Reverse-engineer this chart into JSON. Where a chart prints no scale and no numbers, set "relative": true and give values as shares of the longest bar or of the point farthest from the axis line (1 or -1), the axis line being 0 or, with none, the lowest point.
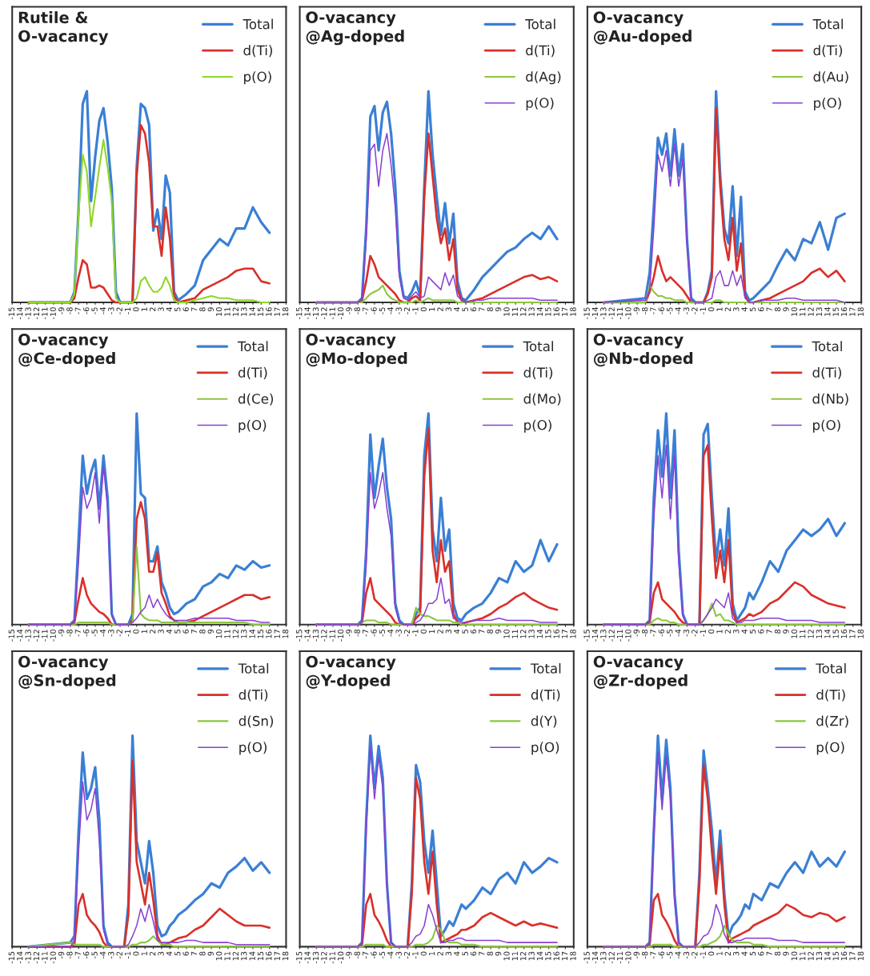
{
  "chart_data": [
    {
      "type": "line",
      "title": "Rutile &\nO-vacancy",
      "relative": true,
      "legend": "top right",
      "tick_labels": "x",
      "grid": false,
      "xlim": [
        -15,
        18
      ],
      "xticks": [
        -15,
        -14,
        -13,
        -12,
        -11,
        -10,
        -9,
        -8,
        -7,
        -6,
        -5,
        -4,
        -3,
        -2,
        -1,
        0,
        1,
        2,
        3,
        4,
        5,
        6,
        7,
        8,
        9,
        10,
        11,
        12,
        13,
        14,
        15,
        16,
        17,
        18
      ],
      "x": [
        -13,
        -8,
        -7.5,
        -7,
        -6.5,
        -6,
        -5.5,
        -5,
        -4.5,
        -4,
        -3.5,
        -3,
        -2.5,
        -2,
        -1.5,
        -1,
        -0.5,
        0,
        0.5,
        1,
        1.5,
        2,
        2.5,
        3,
        3.5,
        4,
        4.5,
        5,
        6,
        7,
        8,
        9,
        10,
        11,
        12,
        13,
        14,
        15,
        16
      ],
      "series": [
        {
          "name": "Total",
          "color": "#3a7fd5",
          "values": [
            0,
            0,
            0.05,
            0.44,
            0.94,
            1.0,
            0.48,
            0.69,
            0.86,
            0.92,
            0.76,
            0.54,
            0.05,
            0,
            0,
            0,
            0,
            0.64,
            0.94,
            0.92,
            0.84,
            0.34,
            0.44,
            0.3,
            0.6,
            0.52,
            0.05,
            0.01,
            0.04,
            0.08,
            0.2,
            0.25,
            0.3,
            0.27,
            0.35,
            0.35,
            0.45,
            0.38,
            0.33
          ]
        },
        {
          "name": "d(Ti)",
          "color": "#d9302a",
          "values": [
            0,
            0,
            0.02,
            0.12,
            0.2,
            0.18,
            0.07,
            0.07,
            0.08,
            0.07,
            0.04,
            0.01,
            0,
            0,
            0,
            0,
            0,
            0.6,
            0.84,
            0.8,
            0.66,
            0.36,
            0.36,
            0.22,
            0.45,
            0.3,
            0.03,
            0,
            0.01,
            0.02,
            0.06,
            0.08,
            0.1,
            0.12,
            0.15,
            0.16,
            0.16,
            0.1,
            0.09
          ]
        },
        {
          "name": "p(O)",
          "color": "#8fd62a",
          "values": [
            0,
            0,
            0.04,
            0.42,
            0.7,
            0.62,
            0.36,
            0.5,
            0.64,
            0.77,
            0.64,
            0.48,
            0.02,
            0,
            0,
            0,
            0,
            0.02,
            0.1,
            0.12,
            0.08,
            0.05,
            0.05,
            0.07,
            0.12,
            0.08,
            0.01,
            0,
            0,
            0.01,
            0.02,
            0.03,
            0.02,
            0.02,
            0.01,
            0.01,
            0.01,
            0,
            0
          ]
        }
      ]
    },
    {
      "type": "line",
      "title": "O-vacancy\n@Ag-doped",
      "relative": true,
      "legend": "top right",
      "tick_labels": "x",
      "grid": false,
      "xlim": [
        -15,
        18
      ],
      "xticks": [
        -15,
        -14,
        -13,
        -12,
        -11,
        -10,
        -9,
        -8,
        -7,
        -6,
        -5,
        -4,
        -3,
        -2,
        -1,
        0,
        1,
        2,
        3,
        4,
        5,
        6,
        7,
        8,
        9,
        10,
        11,
        12,
        13,
        14,
        15,
        16,
        17,
        18
      ],
      "x": [
        -13,
        -8,
        -7.5,
        -7,
        -6.5,
        -6,
        -5.5,
        -5,
        -4.5,
        -4,
        -3.5,
        -3,
        -2.5,
        -2,
        -1.5,
        -1,
        -0.5,
        0,
        0.5,
        1,
        1.5,
        2,
        2.5,
        3,
        3.5,
        4,
        4.5,
        5,
        6,
        7,
        8,
        9,
        10,
        11,
        12,
        13,
        14,
        15,
        16
      ],
      "series": [
        {
          "name": "Total",
          "color": "#3a7fd5",
          "values": [
            0,
            0,
            0.02,
            0.35,
            0.88,
            0.93,
            0.72,
            0.9,
            0.95,
            0.8,
            0.55,
            0.15,
            0.03,
            0.02,
            0.05,
            0.1,
            0.03,
            0.55,
            1.0,
            0.7,
            0.5,
            0.32,
            0.47,
            0.28,
            0.42,
            0.1,
            0.02,
            0.01,
            0.06,
            0.12,
            0.16,
            0.2,
            0.24,
            0.26,
            0.3,
            0.33,
            0.3,
            0.36,
            0.3
          ]
        },
        {
          "name": "d(Ti)",
          "color": "#d9302a",
          "values": [
            0,
            0,
            0.01,
            0.1,
            0.22,
            0.18,
            0.12,
            0.1,
            0.08,
            0.06,
            0.04,
            0.01,
            0,
            0,
            0.02,
            0.03,
            0.01,
            0.5,
            0.8,
            0.6,
            0.4,
            0.28,
            0.35,
            0.2,
            0.3,
            0.06,
            0.01,
            0,
            0.01,
            0.02,
            0.04,
            0.06,
            0.08,
            0.1,
            0.12,
            0.13,
            0.11,
            0.12,
            0.1
          ]
        },
        {
          "name": "d(Ag)",
          "color": "#8cc63f",
          "values": [
            0,
            0,
            0,
            0.02,
            0.04,
            0.05,
            0.06,
            0.08,
            0.04,
            0.02,
            0.01,
            0,
            0,
            0,
            0,
            0.01,
            0,
            0.01,
            0.02,
            0.01,
            0.01,
            0.01,
            0.01,
            0.01,
            0.01,
            0,
            0,
            0,
            0,
            0,
            0,
            0,
            0,
            0,
            0,
            0,
            0,
            0,
            0
          ]
        },
        {
          "name": "p(O)",
          "color": "#8a3fd1",
          "values": [
            0,
            0,
            0.01,
            0.3,
            0.72,
            0.75,
            0.55,
            0.72,
            0.8,
            0.65,
            0.45,
            0.12,
            0.02,
            0.01,
            0.03,
            0.05,
            0.02,
            0.03,
            0.12,
            0.1,
            0.08,
            0.06,
            0.14,
            0.08,
            0.13,
            0.03,
            0.01,
            0,
            0.01,
            0.01,
            0.02,
            0.02,
            0.02,
            0.02,
            0.02,
            0.02,
            0.01,
            0.01,
            0.01
          ]
        }
      ]
    },
    {
      "type": "line",
      "title": "O-vacancy\n@Au-doped",
      "relative": true,
      "legend": "top right",
      "tick_labels": "x",
      "grid": false,
      "xlim": [
        -15,
        18
      ],
      "xticks": [
        -15,
        -14,
        -13,
        -12,
        -11,
        -10,
        -9,
        -8,
        -7,
        -6,
        -5,
        -4,
        -3,
        -2,
        -1,
        0,
        1,
        2,
        3,
        4,
        5,
        6,
        7,
        8,
        9,
        10,
        11,
        12,
        13,
        14,
        15,
        16,
        17,
        18
      ],
      "x": [
        -13,
        -8,
        -7.5,
        -7,
        -6.5,
        -6,
        -5.5,
        -5,
        -4.5,
        -4,
        -3.5,
        -3,
        -2.5,
        -2,
        -1.5,
        -1,
        -0.5,
        0,
        0.5,
        1,
        1.5,
        2,
        2.5,
        3,
        3.5,
        4,
        4.5,
        5,
        6,
        7,
        8,
        9,
        10,
        11,
        12,
        13,
        14,
        15,
        16
      ],
      "series": [
        {
          "name": "Total",
          "color": "#3a7fd5",
          "values": [
            0,
            0.02,
            0.14,
            0.45,
            0.78,
            0.7,
            0.8,
            0.6,
            0.82,
            0.6,
            0.75,
            0.3,
            0.02,
            0,
            0,
            0,
            0.05,
            0.15,
            1.0,
            0.6,
            0.35,
            0.28,
            0.55,
            0.22,
            0.5,
            0.05,
            0.01,
            0.02,
            0.06,
            0.1,
            0.18,
            0.25,
            0.2,
            0.3,
            0.28,
            0.38,
            0.25,
            0.4,
            0.42
          ]
        },
        {
          "name": "d(Ti)",
          "color": "#d9302a",
          "values": [
            0,
            0,
            0.05,
            0.12,
            0.22,
            0.15,
            0.1,
            0.12,
            0.1,
            0.08,
            0.06,
            0.03,
            0,
            0,
            0,
            0,
            0.04,
            0.12,
            0.92,
            0.55,
            0.3,
            0.2,
            0.4,
            0.15,
            0.28,
            0.03,
            0,
            0,
            0.01,
            0.02,
            0.04,
            0.06,
            0.08,
            0.1,
            0.14,
            0.16,
            0.12,
            0.15,
            0.1
          ]
        },
        {
          "name": "d(Au)",
          "color": "#8cc63f",
          "values": [
            0,
            0,
            0.08,
            0.05,
            0.03,
            0.03,
            0.02,
            0.02,
            0.01,
            0.01,
            0.01,
            0,
            0,
            0,
            0,
            0,
            0,
            0,
            0.01,
            0.01,
            0,
            0,
            0,
            0,
            0,
            0,
            0,
            0,
            0,
            0,
            0,
            0,
            0,
            0,
            0,
            0,
            0,
            0,
            0
          ]
        },
        {
          "name": "p(O)",
          "color": "#8a3fd1",
          "values": [
            0,
            0.01,
            0.06,
            0.35,
            0.7,
            0.62,
            0.72,
            0.55,
            0.75,
            0.55,
            0.68,
            0.28,
            0.01,
            0,
            0,
            0,
            0.01,
            0.02,
            0.12,
            0.15,
            0.08,
            0.08,
            0.15,
            0.08,
            0.13,
            0.02,
            0,
            0,
            0.01,
            0.01,
            0.01,
            0.02,
            0.02,
            0.01,
            0.01,
            0.01,
            0.01,
            0.01,
            0
          ]
        }
      ]
    },
    {
      "type": "line",
      "title": "O-vacancy\n@Ce-doped",
      "relative": true,
      "legend": "top right",
      "tick_labels": "x",
      "grid": false,
      "xlim": [
        -15,
        18
      ],
      "xticks": [
        -15,
        -14,
        -13,
        -12,
        -11,
        -10,
        -9,
        -8,
        -7,
        -6,
        -5,
        -4,
        -3,
        -2,
        -1,
        0,
        1,
        2,
        3,
        4,
        5,
        6,
        7,
        8,
        9,
        10,
        11,
        12,
        13,
        14,
        15,
        16,
        17,
        18
      ],
      "x": [
        -13,
        -8,
        -7.5,
        -7,
        -6.5,
        -6,
        -5.5,
        -5,
        -4.5,
        -4,
        -3.5,
        -3,
        -2.5,
        -2,
        -1.5,
        -1,
        -0.5,
        0,
        0.5,
        1,
        1.5,
        2,
        2.5,
        3,
        3.5,
        4,
        4.5,
        5,
        6,
        7,
        8,
        9,
        10,
        11,
        12,
        13,
        14,
        15,
        16
      ],
      "series": [
        {
          "name": "Total",
          "color": "#3a7fd5",
          "values": [
            0,
            0,
            0.02,
            0.4,
            0.8,
            0.62,
            0.72,
            0.78,
            0.55,
            0.8,
            0.6,
            0.05,
            0,
            0,
            0,
            0,
            0.05,
            1.0,
            0.62,
            0.6,
            0.3,
            0.3,
            0.37,
            0.2,
            0.15,
            0.08,
            0.05,
            0.06,
            0.1,
            0.12,
            0.18,
            0.2,
            0.24,
            0.22,
            0.28,
            0.26,
            0.3,
            0.27,
            0.28
          ]
        },
        {
          "name": "d(Ti)",
          "color": "#d9302a",
          "values": [
            0,
            0,
            0.01,
            0.12,
            0.22,
            0.14,
            0.1,
            0.08,
            0.06,
            0.05,
            0.03,
            0,
            0,
            0,
            0,
            0,
            0.02,
            0.5,
            0.58,
            0.5,
            0.25,
            0.25,
            0.34,
            0.15,
            0.1,
            0.04,
            0.02,
            0.01,
            0.01,
            0.02,
            0.04,
            0.06,
            0.08,
            0.1,
            0.12,
            0.14,
            0.14,
            0.12,
            0.13
          ]
        },
        {
          "name": "d(Ce)",
          "color": "#8cc63f",
          "values": [
            0,
            0,
            0,
            0.01,
            0.01,
            0.01,
            0.01,
            0.01,
            0.01,
            0.01,
            0.01,
            0,
            0,
            0,
            0,
            0,
            0.01,
            0.37,
            0.05,
            0.03,
            0.02,
            0.02,
            0.02,
            0.01,
            0.01,
            0.01,
            0.01,
            0.01,
            0.01,
            0.01,
            0.01,
            0.01,
            0.01,
            0.01,
            0.01,
            0.01,
            0,
            0,
            0
          ]
        },
        {
          "name": "p(O)",
          "color": "#8a3fd1",
          "values": [
            0,
            0,
            0.01,
            0.3,
            0.65,
            0.55,
            0.6,
            0.72,
            0.48,
            0.75,
            0.55,
            0.04,
            0,
            0,
            0,
            0,
            0.01,
            0.03,
            0.06,
            0.08,
            0.14,
            0.08,
            0.12,
            0.08,
            0.05,
            0.03,
            0.02,
            0.02,
            0.02,
            0.03,
            0.03,
            0.03,
            0.03,
            0.03,
            0.02,
            0.02,
            0.02,
            0.01,
            0.01
          ]
        }
      ]
    },
    {
      "type": "line",
      "title": "O-vacancy\n@Mo-doped",
      "relative": true,
      "legend": "top right",
      "tick_labels": "x",
      "grid": false,
      "xlim": [
        -15,
        18
      ],
      "xticks": [
        -15,
        -14,
        -13,
        -12,
        -11,
        -10,
        -9,
        -8,
        -7,
        -6,
        -5,
        -4,
        -3,
        -2,
        -1,
        0,
        1,
        2,
        3,
        4,
        5,
        6,
        7,
        8,
        9,
        10,
        11,
        12,
        13,
        14,
        15,
        16,
        17,
        18
      ],
      "x": [
        -13,
        -8,
        -7.5,
        -7,
        -6.5,
        -6,
        -5.5,
        -5,
        -4.5,
        -4,
        -3.5,
        -3,
        -2.5,
        -2,
        -1.5,
        -1,
        -0.5,
        0,
        0.5,
        1,
        1.5,
        2,
        2.5,
        3,
        3.5,
        4,
        4.5,
        5,
        6,
        7,
        8,
        9,
        10,
        11,
        12,
        13,
        14,
        15,
        16
      ],
      "series": [
        {
          "name": "Total",
          "color": "#3a7fd5",
          "values": [
            0,
            0,
            0.02,
            0.35,
            0.9,
            0.6,
            0.75,
            0.88,
            0.65,
            0.5,
            0.1,
            0.02,
            0,
            0,
            0,
            0.05,
            0.08,
            0.8,
            1.0,
            0.45,
            0.3,
            0.6,
            0.35,
            0.45,
            0.1,
            0.03,
            0.02,
            0.05,
            0.08,
            0.1,
            0.15,
            0.22,
            0.2,
            0.3,
            0.25,
            0.28,
            0.4,
            0.3,
            0.38
          ]
        },
        {
          "name": "d(Ti)",
          "color": "#d9302a",
          "values": [
            0,
            0,
            0.01,
            0.15,
            0.22,
            0.12,
            0.1,
            0.08,
            0.06,
            0.04,
            0.01,
            0,
            0,
            0,
            0,
            0.03,
            0.05,
            0.7,
            0.93,
            0.35,
            0.2,
            0.4,
            0.25,
            0.3,
            0.05,
            0.01,
            0,
            0.01,
            0.02,
            0.03,
            0.05,
            0.08,
            0.1,
            0.13,
            0.15,
            0.12,
            0.1,
            0.08,
            0.07
          ]
        },
        {
          "name": "d(Mo)",
          "color": "#8cc63f",
          "values": [
            0,
            0,
            0.01,
            0.02,
            0.02,
            0.02,
            0.01,
            0.01,
            0.01,
            0,
            0,
            0,
            0,
            0,
            0,
            0.08,
            0.05,
            0.04,
            0.04,
            0.03,
            0.02,
            0.02,
            0.02,
            0.02,
            0.01,
            0.01,
            0,
            0,
            0,
            0,
            0,
            0,
            0,
            0,
            0,
            0,
            0,
            0,
            0
          ]
        },
        {
          "name": "p(O)",
          "color": "#8a3fd1",
          "values": [
            0,
            0,
            0.01,
            0.28,
            0.72,
            0.55,
            0.62,
            0.72,
            0.55,
            0.42,
            0.08,
            0.01,
            0,
            0,
            0,
            0.01,
            0.02,
            0.05,
            0.1,
            0.1,
            0.12,
            0.22,
            0.1,
            0.12,
            0.03,
            0.02,
            0.01,
            0.01,
            0.02,
            0.02,
            0.02,
            0.03,
            0.02,
            0.02,
            0.02,
            0.02,
            0.01,
            0.01,
            0.01
          ]
        }
      ]
    },
    {
      "type": "line",
      "title": "O-vacancy\n@Nb-doped",
      "relative": true,
      "legend": "top right",
      "tick_labels": "x",
      "grid": false,
      "xlim": [
        -15,
        18
      ],
      "xticks": [
        -15,
        -14,
        -13,
        -12,
        -11,
        -10,
        -9,
        -8,
        -7,
        -6,
        -5,
        -4,
        -3,
        -2,
        -1,
        0,
        1,
        2,
        3,
        4,
        5,
        6,
        7,
        8,
        9,
        10,
        11,
        12,
        13,
        14,
        15,
        16,
        17,
        18
      ],
      "x": [
        -13,
        -8,
        -7.5,
        -7,
        -6.5,
        -6,
        -5.5,
        -5,
        -4.5,
        -4,
        -3.5,
        -3,
        -2.5,
        -2,
        -1.5,
        -1,
        -0.5,
        0,
        0.5,
        1,
        1.5,
        2,
        2.5,
        3,
        3.5,
        4,
        4.5,
        5,
        6,
        7,
        8,
        9,
        10,
        11,
        12,
        13,
        14,
        15,
        16
      ],
      "series": [
        {
          "name": "Total",
          "color": "#3a7fd5",
          "values": [
            0,
            0,
            0.02,
            0.6,
            0.92,
            0.7,
            1.0,
            0.6,
            0.92,
            0.35,
            0.05,
            0,
            0,
            0,
            0,
            0.9,
            0.95,
            0.6,
            0.3,
            0.45,
            0.28,
            0.55,
            0.1,
            0.02,
            0.05,
            0.08,
            0.15,
            0.12,
            0.2,
            0.3,
            0.25,
            0.35,
            0.4,
            0.45,
            0.42,
            0.45,
            0.5,
            0.42,
            0.48
          ]
        },
        {
          "name": "d(Ti)",
          "color": "#d9302a",
          "values": [
            0,
            0,
            0.01,
            0.15,
            0.2,
            0.12,
            0.1,
            0.08,
            0.06,
            0.03,
            0.01,
            0,
            0,
            0,
            0,
            0.8,
            0.85,
            0.5,
            0.22,
            0.35,
            0.2,
            0.4,
            0.06,
            0.01,
            0.02,
            0.03,
            0.05,
            0.04,
            0.06,
            0.1,
            0.12,
            0.16,
            0.2,
            0.18,
            0.14,
            0.12,
            0.1,
            0.09,
            0.08
          ]
        },
        {
          "name": "d(Nb)",
          "color": "#8cc63f",
          "values": [
            0,
            0,
            0,
            0.02,
            0.03,
            0.02,
            0.02,
            0.01,
            0.01,
            0,
            0,
            0,
            0,
            0,
            0,
            0.02,
            0.05,
            0.1,
            0.04,
            0.05,
            0.02,
            0.02,
            0.01,
            0,
            0,
            0,
            0,
            0,
            0,
            0,
            0,
            0,
            0,
            0,
            0,
            0,
            0,
            0,
            0
          ]
        },
        {
          "name": "p(O)",
          "color": "#8a3fd1",
          "values": [
            0,
            0,
            0.01,
            0.5,
            0.8,
            0.6,
            0.85,
            0.5,
            0.8,
            0.3,
            0.04,
            0,
            0,
            0,
            0,
            0.02,
            0.05,
            0.08,
            0.12,
            0.1,
            0.08,
            0.15,
            0.03,
            0.01,
            0.01,
            0.02,
            0.02,
            0.02,
            0.03,
            0.03,
            0.03,
            0.02,
            0.02,
            0.02,
            0.02,
            0.01,
            0.01,
            0.01,
            0.01
          ]
        }
      ]
    },
    {
      "type": "line",
      "title": "O-vacancy\n@Sn-doped",
      "relative": true,
      "legend": "top right",
      "tick_labels": "x",
      "grid": false,
      "xlim": [
        -15,
        18
      ],
      "xticks": [
        -15,
        -14,
        -13,
        -12,
        -11,
        -10,
        -9,
        -8,
        -7,
        -6,
        -5,
        -4,
        -3,
        -2,
        -1,
        0,
        1,
        2,
        3,
        4,
        5,
        6,
        7,
        8,
        9,
        10,
        11,
        12,
        13,
        14,
        15,
        16,
        17,
        18
      ],
      "x": [
        -13,
        -8,
        -7.5,
        -7,
        -6.5,
        -6,
        -5.5,
        -5,
        -4.5,
        -4,
        -3.5,
        -3,
        -2.5,
        -2,
        -1.5,
        -1,
        -0.5,
        0,
        0.5,
        1,
        1.5,
        2,
        2.5,
        3,
        3.5,
        4,
        4.5,
        5,
        6,
        7,
        8,
        9,
        10,
        11,
        12,
        13,
        14,
        15,
        16
      ],
      "series": [
        {
          "name": "Total",
          "color": "#3a7fd5",
          "values": [
            0,
            0.02,
            0.05,
            0.55,
            0.92,
            0.7,
            0.75,
            0.85,
            0.6,
            0.1,
            0.02,
            0,
            0,
            0,
            0,
            0.2,
            1.0,
            0.5,
            0.4,
            0.3,
            0.5,
            0.35,
            0.1,
            0.05,
            0.06,
            0.1,
            0.12,
            0.15,
            0.18,
            0.22,
            0.25,
            0.3,
            0.28,
            0.35,
            0.38,
            0.42,
            0.36,
            0.4,
            0.35
          ]
        },
        {
          "name": "d(Ti)",
          "color": "#d9302a",
          "values": [
            0,
            0,
            0.01,
            0.2,
            0.25,
            0.15,
            0.12,
            0.1,
            0.07,
            0.02,
            0,
            0,
            0,
            0,
            0,
            0.15,
            0.88,
            0.4,
            0.3,
            0.2,
            0.35,
            0.22,
            0.05,
            0.01,
            0.01,
            0.02,
            0.03,
            0.04,
            0.05,
            0.08,
            0.1,
            0.14,
            0.18,
            0.15,
            0.12,
            0.1,
            0.1,
            0.1,
            0.09
          ]
        },
        {
          "name": "d(Sn)",
          "color": "#8cc63f",
          "values": [
            0,
            0.02,
            0.01,
            0.01,
            0.01,
            0.01,
            0.01,
            0.01,
            0.01,
            0,
            0,
            0,
            0,
            0,
            0,
            0,
            0.01,
            0.01,
            0.02,
            0.02,
            0.03,
            0.05,
            0.03,
            0.01,
            0.01,
            0.01,
            0,
            0,
            0,
            0,
            0,
            0,
            0,
            0,
            0,
            0,
            0,
            0,
            0
          ]
        },
        {
          "name": "p(O)",
          "color": "#8a3fd1",
          "values": [
            0,
            0,
            0.03,
            0.45,
            0.78,
            0.6,
            0.65,
            0.75,
            0.5,
            0.08,
            0.01,
            0,
            0,
            0,
            0,
            0.01,
            0.05,
            0.1,
            0.18,
            0.12,
            0.2,
            0.12,
            0.03,
            0.02,
            0.02,
            0.02,
            0.02,
            0.02,
            0.03,
            0.03,
            0.02,
            0.02,
            0.02,
            0.02,
            0.01,
            0.01,
            0.01,
            0.01,
            0.01
          ]
        }
      ]
    },
    {
      "type": "line",
      "title": "O-vacancy\n@Y-doped",
      "relative": true,
      "legend": "top right",
      "tick_labels": "x",
      "grid": false,
      "xlim": [
        -15,
        18
      ],
      "xticks": [
        -15,
        -14,
        -13,
        -12,
        -11,
        -10,
        -9,
        -8,
        -7,
        -6,
        -5,
        -4,
        -3,
        -2,
        -1,
        0,
        1,
        2,
        3,
        4,
        5,
        6,
        7,
        8,
        9,
        10,
        11,
        12,
        13,
        14,
        15,
        16,
        17,
        18
      ],
      "x": [
        -13,
        -8,
        -7.5,
        -7,
        -6.5,
        -6,
        -5.5,
        -5,
        -4.5,
        -4,
        -3.5,
        -3,
        -2.5,
        -2,
        -1.5,
        -1,
        -0.5,
        0,
        0.5,
        1,
        1.5,
        2,
        2.5,
        3,
        3.5,
        4,
        4.5,
        5,
        6,
        7,
        8,
        9,
        10,
        11,
        12,
        13,
        14,
        15,
        16
      ],
      "series": [
        {
          "name": "Total",
          "color": "#3a7fd5",
          "values": [
            0,
            0,
            0.02,
            0.6,
            1.0,
            0.75,
            0.95,
            0.8,
            0.3,
            0.02,
            0,
            0,
            0,
            0,
            0.3,
            0.86,
            0.78,
            0.5,
            0.35,
            0.55,
            0.3,
            0.05,
            0.08,
            0.12,
            0.1,
            0.15,
            0.2,
            0.18,
            0.22,
            0.28,
            0.25,
            0.32,
            0.35,
            0.3,
            0.4,
            0.35,
            0.38,
            0.42,
            0.4
          ]
        },
        {
          "name": "d(Ti)",
          "color": "#d9302a",
          "values": [
            0,
            0,
            0.01,
            0.2,
            0.25,
            0.15,
            0.12,
            0.08,
            0.03,
            0,
            0,
            0,
            0,
            0,
            0.25,
            0.8,
            0.7,
            0.4,
            0.25,
            0.45,
            0.2,
            0.02,
            0.03,
            0.04,
            0.05,
            0.06,
            0.08,
            0.08,
            0.1,
            0.14,
            0.16,
            0.14,
            0.12,
            0.1,
            0.12,
            0.1,
            0.11,
            0.1,
            0.09
          ]
        },
        {
          "name": "d(Y)",
          "color": "#8cc63f",
          "values": [
            0,
            0,
            0,
            0.01,
            0.01,
            0.01,
            0.01,
            0.01,
            0,
            0,
            0,
            0,
            0,
            0,
            0,
            0.01,
            0.01,
            0.01,
            0.02,
            0.04,
            0.1,
            0.08,
            0.03,
            0.02,
            0.02,
            0.02,
            0.01,
            0.01,
            0.01,
            0,
            0,
            0,
            0,
            0,
            0,
            0,
            0,
            0,
            0
          ]
        },
        {
          "name": "p(O)",
          "color": "#8a3fd1",
          "values": [
            0,
            0,
            0.01,
            0.55,
            0.95,
            0.7,
            0.9,
            0.75,
            0.28,
            0.02,
            0,
            0,
            0,
            0,
            0.02,
            0.05,
            0.06,
            0.1,
            0.2,
            0.15,
            0.08,
            0.02,
            0.02,
            0.03,
            0.03,
            0.04,
            0.04,
            0.03,
            0.03,
            0.03,
            0.03,
            0.03,
            0.02,
            0.02,
            0.02,
            0.02,
            0.02,
            0.02,
            0.02
          ]
        }
      ]
    },
    {
      "type": "line",
      "title": "O-vacancy\n@Zr-doped",
      "relative": true,
      "legend": "top right",
      "tick_labels": "x",
      "grid": false,
      "xlim": [
        -15,
        18
      ],
      "xticks": [
        -15,
        -14,
        -13,
        -12,
        -11,
        -10,
        -9,
        -8,
        -7,
        -6,
        -5,
        -4,
        -3,
        -2,
        -1,
        0,
        1,
        2,
        3,
        4,
        5,
        6,
        7,
        8,
        9,
        10,
        11,
        12,
        13,
        14,
        15,
        16,
        17,
        18
      ],
      "x": [
        -13,
        -8,
        -7.5,
        -7,
        -6.5,
        -6,
        -5.5,
        -5,
        -4.5,
        -4,
        -3.5,
        -3,
        -2.5,
        -2,
        -1.5,
        -1,
        -0.5,
        0,
        0.5,
        1,
        1.5,
        2,
        2.5,
        3,
        3.5,
        4,
        4.5,
        5,
        6,
        7,
        8,
        9,
        10,
        11,
        12,
        13,
        14,
        15,
        16
      ],
      "series": [
        {
          "name": "Total",
          "color": "#3a7fd5",
          "values": [
            0,
            0,
            0.02,
            0.55,
            1.0,
            0.7,
            0.98,
            0.75,
            0.25,
            0.02,
            0,
            0,
            0,
            0,
            0.35,
            0.93,
            0.75,
            0.55,
            0.3,
            0.55,
            0.25,
            0.05,
            0.1,
            0.12,
            0.15,
            0.2,
            0.18,
            0.25,
            0.22,
            0.3,
            0.28,
            0.35,
            0.4,
            0.35,
            0.45,
            0.38,
            0.42,
            0.38,
            0.45
          ]
        },
        {
          "name": "d(Ti)",
          "color": "#d9302a",
          "values": [
            0,
            0,
            0.01,
            0.22,
            0.25,
            0.15,
            0.12,
            0.08,
            0.03,
            0,
            0,
            0,
            0,
            0,
            0.3,
            0.86,
            0.7,
            0.45,
            0.25,
            0.48,
            0.2,
            0.02,
            0.04,
            0.05,
            0.06,
            0.07,
            0.08,
            0.1,
            0.12,
            0.14,
            0.16,
            0.2,
            0.18,
            0.15,
            0.14,
            0.16,
            0.15,
            0.12,
            0.14
          ]
        },
        {
          "name": "d(Zr)",
          "color": "#8cc63f",
          "values": [
            0,
            0,
            0,
            0.01,
            0.01,
            0.01,
            0.01,
            0.01,
            0,
            0,
            0,
            0,
            0,
            0,
            0,
            0.01,
            0.01,
            0.02,
            0.03,
            0.05,
            0.1,
            0.06,
            0.03,
            0.02,
            0.02,
            0.02,
            0.02,
            0.01,
            0.01,
            0,
            0,
            0,
            0,
            0,
            0,
            0,
            0,
            0,
            0
          ]
        },
        {
          "name": "p(O)",
          "color": "#8a3fd1",
          "values": [
            0,
            0,
            0.01,
            0.5,
            0.92,
            0.65,
            0.9,
            0.7,
            0.22,
            0.02,
            0,
            0,
            0,
            0,
            0.02,
            0.05,
            0.06,
            0.1,
            0.2,
            0.15,
            0.06,
            0.02,
            0.02,
            0.03,
            0.03,
            0.04,
            0.04,
            0.04,
            0.04,
            0.04,
            0.03,
            0.03,
            0.03,
            0.02,
            0.02,
            0.02,
            0.02,
            0.02,
            0.02
          ]
        }
      ]
    }
  ]
}
